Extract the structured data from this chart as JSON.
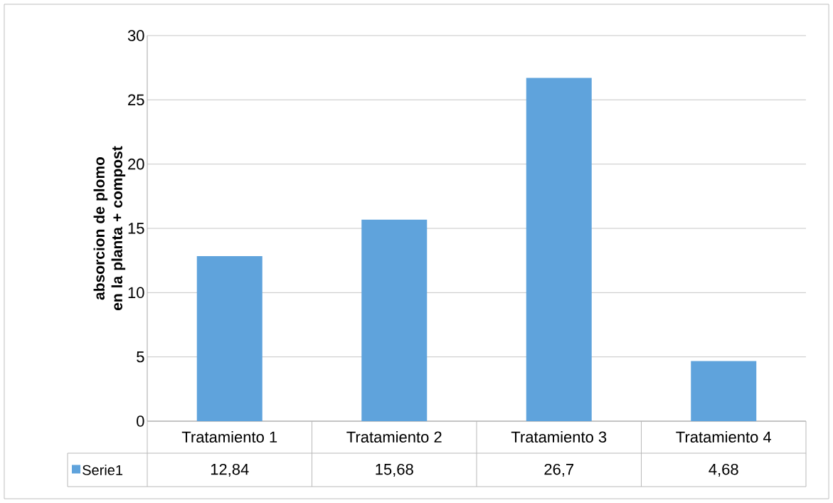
{
  "chart_data": {
    "type": "bar",
    "ylabel": "absorcion de plomo en la planta + compost",
    "categories": [
      "Tratamiento 1",
      "Tratamiento 2",
      "Tratamiento 3",
      "Tratamiento 4"
    ],
    "series": [
      {
        "name": "Serie1",
        "color": "#5fa3dc",
        "values": [
          12.84,
          15.68,
          26.7,
          4.68
        ],
        "value_labels": [
          "12,84",
          "15,68",
          "26,7",
          "4,68"
        ]
      }
    ],
    "ylim": [
      0,
      30
    ],
    "yticks": [
      0,
      5,
      10,
      15,
      20,
      25,
      30
    ],
    "grid": "y",
    "legend": "bottom"
  }
}
